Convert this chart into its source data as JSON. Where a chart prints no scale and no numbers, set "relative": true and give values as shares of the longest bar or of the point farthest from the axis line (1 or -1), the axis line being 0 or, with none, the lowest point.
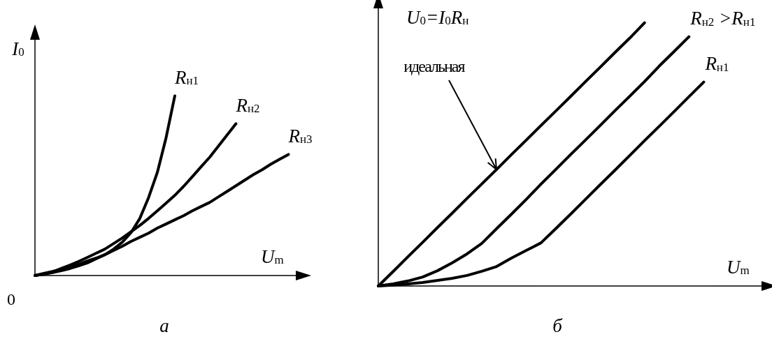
{
  "chart_data": [
    {
      "type": "line",
      "title": "а",
      "xlabel": "U$_{m}$",
      "ylabel": "I$_{0}$",
      "relative": true,
      "legend": false,
      "grid": false,
      "marker": "none",
      "line_style": "solid",
      "annotations": [
        "0"
      ],
      "categories": [
        null,
        null,
        null,
        null,
        null,
        null,
        null,
        null,
        null,
        null,
        null,
        null,
        null,
        null,
        null,
        null,
        null,
        null,
        null,
        null,
        null,
        null,
        null,
        null,
        null,
        null,
        null,
        null,
        null,
        null,
        null
      ],
      "series": [
        {
          "name": "R$_{н1}$",
          "color": "#000000",
          "values": [
            0,
            0.008,
            0.016,
            0.027,
            0.039,
            0.054,
            0.07,
            0.093,
            0.116,
            0.147,
            0.186,
            0.24,
            0.318,
            0.434,
            0.574,
            0.767,
            1,
            null,
            null,
            null,
            null,
            null,
            null,
            null,
            null,
            null,
            null,
            null,
            null,
            null,
            null
          ]
        },
        {
          "name": "R$_{н2}$",
          "color": "#000000",
          "values": [
            0,
            0.008,
            0.019,
            0.039,
            0.058,
            0.078,
            0.101,
            0.124,
            0.147,
            0.178,
            0.209,
            0.244,
            0.279,
            0.318,
            0.36,
            0.403,
            0.446,
            0.496,
            0.55,
            0.605,
            0.659,
            0.721,
            0.783,
            0.845,
            null,
            null,
            null,
            null,
            null,
            null,
            null
          ]
        },
        {
          "name": "R$_{н3}$",
          "color": "#000000",
          "values": [
            0,
            0.012,
            0.023,
            0.035,
            0.047,
            0.062,
            0.081,
            0.097,
            0.116,
            0.14,
            0.163,
            0.19,
            0.213,
            0.236,
            0.264,
            0.287,
            0.31,
            0.333,
            0.36,
            0.384,
            0.407,
            0.438,
            0.469,
            0.5,
            0.531,
            0.562,
            0.589,
            0.62,
            0.647,
            0.674,
            null
          ]
        }
      ]
    },
    {
      "type": "line",
      "title": "б",
      "xlabel": "U$_{m}$",
      "ylabel": "U$_{0}$=I$_{0}$R$_{н}$",
      "relative": true,
      "legend": false,
      "grid": false,
      "marker": "none",
      "line_style": "solid",
      "annotations": [
        "идеальная"
      ],
      "categories": [
        null,
        null,
        null,
        null,
        null,
        null,
        null,
        null,
        null,
        null,
        null,
        null,
        null,
        null,
        null,
        null,
        null,
        null,
        null,
        null,
        null,
        null,
        null,
        null,
        null,
        null,
        null
      ],
      "series": [
        {
          "color": "#000000",
          "values": [
            0,
            0.055,
            0.111,
            0.166,
            0.222,
            0.277,
            0.333,
            0.388,
            0.443,
            0.499,
            0.554,
            0.61,
            0.665,
            0.72,
            0.776,
            0.831,
            0.887,
            0.942,
            1,
            null,
            null,
            null,
            null,
            null,
            null,
            null,
            null
          ]
        },
        {
          "name": "R$_{н2}$ >R$_{н1}$",
          "color": "#000000",
          "values": [
            0,
            0.008,
            0.019,
            0.034,
            0.058,
            0.088,
            0.122,
            0.162,
            0.218,
            0.273,
            0.329,
            0.387,
            0.443,
            0.499,
            0.554,
            0.61,
            0.666,
            0.721,
            0.777,
            0.836,
            0.891,
            0.947,
            null,
            null,
            null,
            null,
            null
          ]
        },
        {
          "name": "R$_{н1}$",
          "color": "#000000",
          "values": [
            0,
            0.003,
            0.008,
            0.013,
            0.021,
            0.029,
            0.04,
            0.056,
            0.074,
            0.106,
            0.135,
            0.164,
            0.218,
            0.273,
            0.329,
            0.385,
            0.44,
            0.496,
            0.552,
            0.607,
            0.663,
            0.719,
            0.775,
            null,
            null,
            null,
            null
          ]
        }
      ]
    }
  ]
}
